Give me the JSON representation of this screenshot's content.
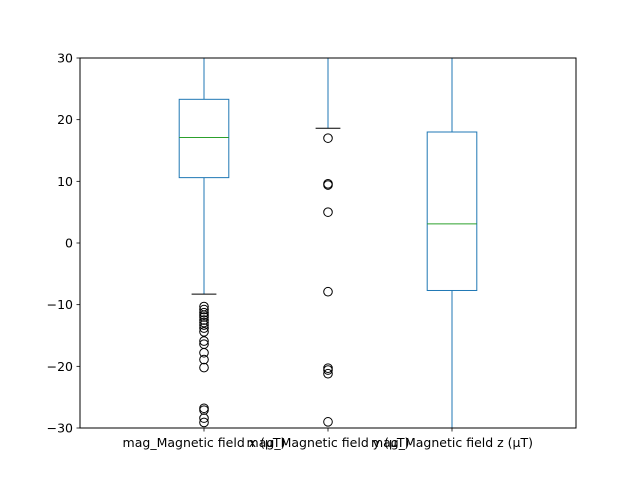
{
  "chart_data": {
    "type": "box",
    "ylim": [
      -30,
      30
    ],
    "yticks": [
      -30,
      -20,
      -10,
      0,
      10,
      20,
      30
    ],
    "ytick_labels": [
      "−30",
      "−20",
      "−10",
      "0",
      "10",
      "20",
      "30"
    ],
    "categories": [
      "mag_Magnetic field x (µT)",
      "mag_Magnetic field y (µT)",
      "mag_Magnetic field z (µT)"
    ],
    "boxes": [
      {
        "q1": 10.6,
        "median": 17.1,
        "q3": 23.3,
        "whisker_low": -8.3,
        "whisker_high": 30,
        "has_upper_cap": false,
        "has_lower_cap": true,
        "outliers": [
          -10.3,
          -10.8,
          -11.3,
          -11.7,
          -12.0,
          -12.5,
          -12.9,
          -13.3,
          -13.8,
          -14.4,
          -15.9,
          -16.4,
          -17.8,
          -18.9,
          -20.2,
          -26.8,
          -27.1,
          -28.4,
          -29.1
        ]
      },
      {
        "q1": null,
        "median": null,
        "q3": null,
        "whisker_low": 18.6,
        "whisker_high": 30,
        "has_upper_cap": false,
        "has_lower_cap": true,
        "outliers": [
          17.0,
          9.6,
          9.4,
          5.0,
          -7.9,
          -20.3,
          -20.6,
          -21.2,
          -29.0
        ]
      },
      {
        "q1": -7.7,
        "median": 3.1,
        "q3": 18.0,
        "whisker_low": -30,
        "whisker_high": 30,
        "has_upper_cap": false,
        "has_lower_cap": false,
        "outliers": []
      }
    ],
    "colors": {
      "box": "#1f77b4",
      "median": "#2ca02c",
      "cap": "#000000",
      "outlier": "#000000",
      "axes": "#000000"
    },
    "grid": false
  }
}
